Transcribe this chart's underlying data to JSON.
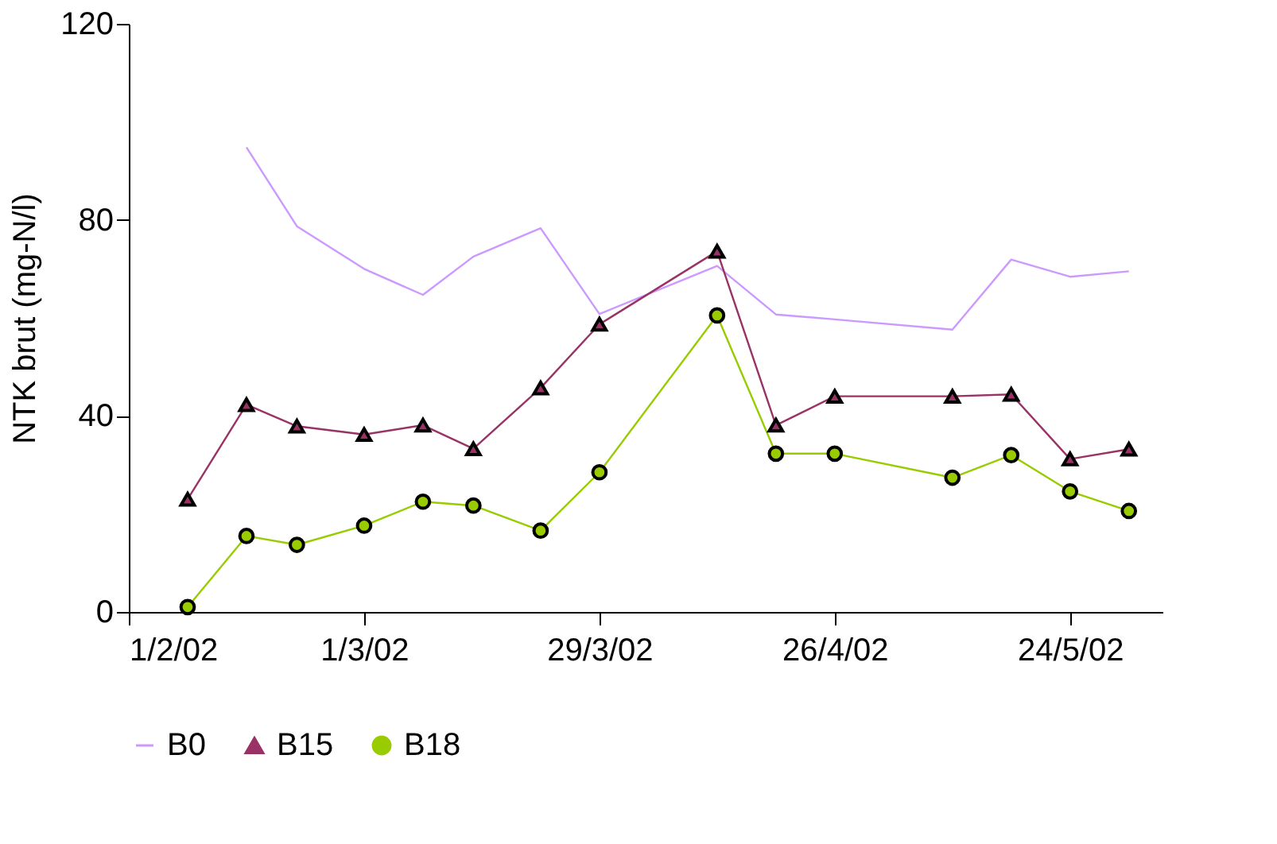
{
  "chart_data": {
    "type": "line",
    "ylabel": "NTK brut (mg-N/l)",
    "x": [
      "2002-02-08",
      "2002-02-15",
      "2002-02-21",
      "2002-03-01",
      "2002-03-08",
      "2002-03-14",
      "2002-03-22",
      "2002-03-29",
      "2002-04-12",
      "2002-04-19",
      "2002-04-26",
      "2002-05-10",
      "2002-05-17",
      "2002-05-24",
      "2002-05-31"
    ],
    "series": [
      {
        "name": "B0",
        "color": "#cc99ff",
        "marker": "none",
        "values": [
          null,
          94.8,
          78.7,
          70,
          64.7,
          72.5,
          78.3,
          60.8,
          70.6,
          60.7,
          59.7,
          57.6,
          71.9,
          68.4,
          69.5
        ]
      },
      {
        "name": "B15",
        "color": "#993366",
        "marker": "triangle",
        "values": [
          23,
          42.3,
          37.9,
          36.2,
          38.1,
          33.3,
          45.7,
          58.7,
          73.6,
          38.1,
          44,
          44,
          44.4,
          31.2,
          33.2
        ]
      },
      {
        "name": "B18",
        "color": "#99cc00",
        "marker": "circle",
        "values": [
          1,
          15.5,
          13.7,
          17.6,
          22.5,
          21.7,
          16.6,
          28.5,
          60.5,
          32.3,
          32.3,
          27.4,
          32,
          24.6,
          20.6
        ]
      }
    ],
    "xlim": [
      "2002-02-01",
      "2002-06-04"
    ],
    "xticks": [
      {
        "value": "2002-02-01",
        "label": "1/2/02"
      },
      {
        "value": "2002-03-01",
        "label": "1/3/02"
      },
      {
        "value": "2002-03-29",
        "label": "29/3/02"
      },
      {
        "value": "2002-04-26",
        "label": "26/4/02"
      },
      {
        "value": "2002-05-24",
        "label": "24/5/02"
      }
    ],
    "ylim": [
      0,
      120
    ],
    "yticks": [
      0,
      40,
      80,
      120
    ],
    "grid": false,
    "legend": "bottom"
  }
}
